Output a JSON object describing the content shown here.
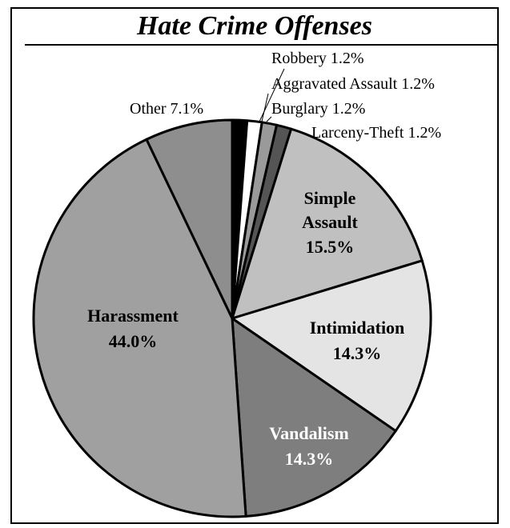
{
  "chart_data": {
    "type": "pie",
    "title": "Hate Crime Offenses",
    "slices": [
      {
        "label": "Robbery",
        "display": "1.2%",
        "value": 1.2,
        "color": "#000000",
        "label_style": "outer",
        "label_color": "#000000"
      },
      {
        "label": "Aggravated Assault",
        "display": "1.2%",
        "value": 1.2,
        "color": "#ffffff",
        "label_style": "outer",
        "label_color": "#000000"
      },
      {
        "label": "Burglary",
        "display": "1.2%",
        "value": 1.2,
        "color": "#9a9a9a",
        "label_style": "outer",
        "label_color": "#000000"
      },
      {
        "label": "Larceny-Theft",
        "display": "1.2%",
        "value": 1.2,
        "color": "#555555",
        "label_style": "outer",
        "label_color": "#000000"
      },
      {
        "label": "Simple Assault",
        "display": "15.5%",
        "value": 15.5,
        "color": "#c0c0c0",
        "label_style": "inner",
        "label_color": "#000000"
      },
      {
        "label": "Intimidation",
        "display": "14.3%",
        "value": 14.3,
        "color": "#e4e4e4",
        "label_style": "inner",
        "label_color": "#000000"
      },
      {
        "label": "Vandalism",
        "display": "14.3%",
        "value": 14.3,
        "color": "#7e7e7e",
        "label_style": "inner",
        "label_color": "#ffffff"
      },
      {
        "label": "Harassment",
        "display": "44.0%",
        "value": 44.0,
        "color": "#a0a0a0",
        "label_style": "inner",
        "label_color": "#000000"
      },
      {
        "label": "Other",
        "display": "7.1%",
        "value": 7.1,
        "color": "#8e8e8e",
        "label_style": "outer",
        "label_color": "#000000"
      }
    ]
  }
}
